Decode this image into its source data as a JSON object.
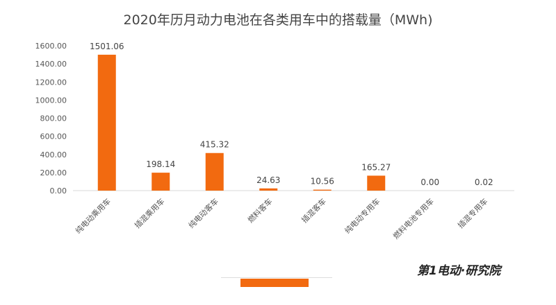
{
  "chart_data": {
    "type": "bar",
    "title": "2020年历月动力电池在各类用车中的搭载量（MWh)",
    "categories": [
      "纯电动乘用车",
      "插混乘用车",
      "纯电动客车",
      "燃料客车",
      "插混客车",
      "纯电动专用车",
      "燃料电池专用车",
      "插混专用车"
    ],
    "values": [
      1501.06,
      198.14,
      415.32,
      24.63,
      10.56,
      165.27,
      0.0,
      0.02
    ],
    "data_labels": [
      "1501.06",
      "198.14",
      "415.32",
      "24.63",
      "10.56",
      "165.27",
      "0.00",
      "0.02"
    ],
    "ylim": [
      0,
      1600
    ],
    "yticks": [
      "0.00",
      "200.00",
      "400.00",
      "600.00",
      "800.00",
      "1000.00",
      "1200.00",
      "1400.00",
      "1600.00"
    ],
    "grid": false,
    "bar_color": "#f26a10"
  },
  "footer": {
    "logo": "第1电动·研究院"
  }
}
